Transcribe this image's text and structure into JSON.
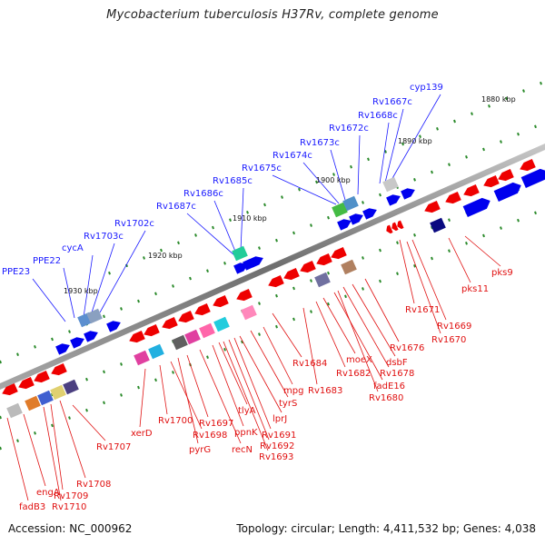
{
  "title": "Mycobacterium tuberculosis H37Rv, complete genome",
  "footer": {
    "accession": "Accession: NC_000962",
    "topology": "Topology: circular; Length: 4,411,532 bp; Genes: 4,038"
  },
  "kbp_labels": [
    "1880 kbp",
    "1890 kbp",
    "1900 kbp",
    "1910 kbp",
    "1920 kbp",
    "1930 kbp"
  ],
  "forward_labels": [
    "PPE23",
    "PPE22",
    "cycA",
    "Rv1703c",
    "Rv1702c",
    "Rv1687c",
    "Rv1686c",
    "Rv1685c",
    "Rv1675c",
    "Rv1674c",
    "Rv1673c",
    "Rv1672c",
    "Rv1668c",
    "Rv1667c",
    "cyp139"
  ],
  "reverse_labels": [
    "fadB3",
    "engA",
    "Rv1710",
    "Rv1709",
    "Rv1708",
    "Rv1707",
    "xerD",
    "Rv1700",
    "Rv1698",
    "pyrG",
    "Rv1697",
    "recN",
    "ppnK",
    "tlyA",
    "Rv1693",
    "Rv1692",
    "Rv1691",
    "lprJ",
    "tyrS",
    "mpg",
    "Rv1684",
    "Rv1683",
    "Rv1682",
    "moeX",
    "fadE16",
    "Rv1680",
    "Rv1678",
    "dsbF",
    "Rv1676",
    "Rv1671",
    "Rv1670",
    "Rv1669",
    "pks11",
    "pks9"
  ],
  "colors": {
    "forward_label": "#1a1aff",
    "reverse_label": "#e01010",
    "forward_strand": "#0000ee",
    "reverse_strand": "#ee0000",
    "backbone": "#888888"
  }
}
